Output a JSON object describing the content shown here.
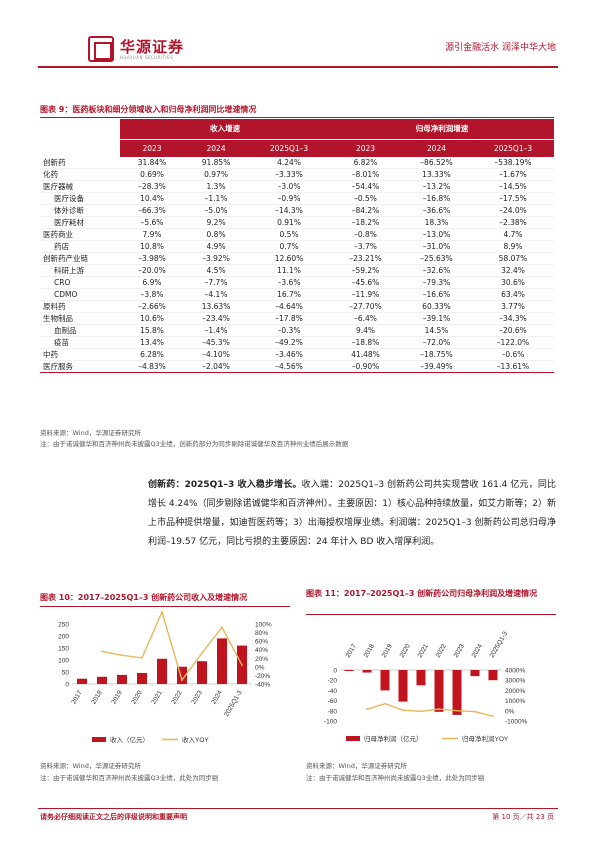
{
  "header": {
    "logo_cn": "华源证券",
    "logo_en": "HUAYUAN SECURITIES",
    "slogan": "源引金融活水  润泽中华大地"
  },
  "table": {
    "title": "图表 9：医药板块和细分领域收入和归母净利润同比增速情况",
    "group1": "收入增速",
    "group2": "归母净利润增速",
    "years": [
      "2023",
      "2024",
      "2025Q1–3",
      "2023",
      "2024",
      "2025Q1–3"
    ],
    "rows": [
      {
        "name": "创新药",
        "indent": false,
        "vals": [
          "31.84%",
          "91.85%",
          "4.24%",
          "6.82%",
          "–86.52%",
          "–538.19%"
        ]
      },
      {
        "name": "化药",
        "indent": false,
        "vals": [
          "0.69%",
          "0.97%",
          "–3.33%",
          "–8.01%",
          "13.33%",
          "–1.67%"
        ]
      },
      {
        "name": "医疗器械",
        "indent": false,
        "vals": [
          "–28.3%",
          "1.3%",
          "–3.0%",
          "–54.4%",
          "–13.2%",
          "–14.5%"
        ]
      },
      {
        "name": "医疗设备",
        "indent": true,
        "vals": [
          "10.4%",
          "–1.1%",
          "–0.9%",
          "–0.5%",
          "–16.8%",
          "–17.5%"
        ]
      },
      {
        "name": "体外诊断",
        "indent": true,
        "vals": [
          "–66.3%",
          "–5.0%",
          "–14.3%",
          "–84.2%",
          "–36.6%",
          "–24.0%"
        ]
      },
      {
        "name": "医疗耗材",
        "indent": true,
        "vals": [
          "–5.6%",
          "9.2%",
          "0.91%",
          "–18.2%",
          "18.3%",
          "–2.38%"
        ]
      },
      {
        "name": "医药商业",
        "indent": false,
        "vals": [
          "7.9%",
          "0.8%",
          "0.5%",
          "–0.8%",
          "–13.0%",
          "4.7%"
        ]
      },
      {
        "name": "药店",
        "indent": true,
        "vals": [
          "10.8%",
          "4.9%",
          "0.7%",
          "–3.7%",
          "–31.0%",
          "8.9%"
        ]
      },
      {
        "name": "创新药产业链",
        "indent": false,
        "vals": [
          "–3.98%",
          "–3.92%",
          "12.60%",
          "–23.21%",
          "–25.63%",
          "58.07%"
        ]
      },
      {
        "name": "科研上游",
        "indent": true,
        "vals": [
          "–20.0%",
          "4.5%",
          "11.1%",
          "–59.2%",
          "–32.6%",
          "32.4%"
        ]
      },
      {
        "name": "CRO",
        "indent": true,
        "vals": [
          "6.9%",
          "–7.7%",
          "–3.6%",
          "–45.6%",
          "–79.3%",
          "30.6%"
        ]
      },
      {
        "name": "CDMO",
        "indent": true,
        "vals": [
          "–3.8%",
          "–4.1%",
          "16.7%",
          "–11.9%",
          "–16.6%",
          "63.4%"
        ]
      },
      {
        "name": "原料药",
        "indent": false,
        "vals": [
          "–2.66%",
          "13.63%",
          "–4.64%",
          "–27.70%",
          "60.33%",
          "3.77%"
        ]
      },
      {
        "name": "生物制品",
        "indent": false,
        "vals": [
          "10.6%",
          "–23.4%",
          "–17.8%",
          "–6.4%",
          "–39.1%",
          "–34.3%"
        ]
      },
      {
        "name": "血制品",
        "indent": true,
        "vals": [
          "15.8%",
          "–1.4%",
          "–0.3%",
          "9.4%",
          "14.5%",
          "–20.6%"
        ]
      },
      {
        "name": "疫苗",
        "indent": true,
        "vals": [
          "13.4%",
          "–45.3%",
          "–49.2%",
          "–18.8%",
          "–72.0%",
          "–122.0%"
        ]
      },
      {
        "name": "中药",
        "indent": false,
        "vals": [
          "6.28%",
          "–4.10%",
          "–3.46%",
          "41.48%",
          "–18.75%",
          "–0.6%"
        ]
      },
      {
        "name": "医疗服务",
        "indent": false,
        "vals": [
          "–4.83%",
          "–2.04%",
          "–4.56%",
          "–0.90%",
          "–39.49%",
          "–13.61%"
        ]
      }
    ],
    "source": "资料来源：Wind，华源证券研究所",
    "note": "注：由于诺诚健华和百济神州尚未披露Q3业绩，创新药部分为同步剔除诺诚健华及百济神州业绩后展示数据"
  },
  "paragraph": {
    "lead": "创新药：2025Q1–3 收入稳步增长。",
    "body": "收入端：2025Q1–3 创新药公司共实现营收 161.4 亿元，同比增长 4.24%（同步剔除诺诚健华和百济神州）。主要原因：1）核心品种持续放量，如艾力斯等；2）新上市品种提供增量，如迪哲医药等；3）出海授权增厚业绩。利润端：2025Q1–3 创新药公司总归母净利润–19.57 亿元，同比亏损的主要原因：24 年计入 BD 收入增厚利润。"
  },
  "chart_data": [
    {
      "type": "bar",
      "title": "图表 10：2017–2025Q1–3 创新药公司收入及增速情况",
      "categories": [
        "2017",
        "2018",
        "2019",
        "2020",
        "2021",
        "2022",
        "2023",
        "2024",
        "2025Q1-3"
      ],
      "series": [
        {
          "name": "收入（亿元）",
          "type": "bar",
          "axis": "left",
          "values": [
            22,
            30,
            38,
            46,
            105,
            72,
            95,
            190,
            160
          ]
        },
        {
          "name": "收入YOY",
          "type": "line",
          "axis": "right",
          "values": [
            null,
            36,
            27,
            21,
            128,
            -31,
            32,
            92,
            4
          ]
        }
      ],
      "ylim_left": [
        0,
        250
      ],
      "yticks_left": [
        "0",
        "50",
        "100",
        "150",
        "200",
        "250"
      ],
      "ylim_right": [
        -40,
        100
      ],
      "yticks_right": [
        "-40%",
        "-20%",
        "0%",
        "20%",
        "40%",
        "60%",
        "80%",
        "100%"
      ],
      "colors": {
        "bar": "#c0141e",
        "line": "#e6b85c"
      },
      "legend": "bottom",
      "source": "资料来源：Wind，华源证券研究所",
      "note": "注：由于诺诚健华和百济神州尚未披露Q3业绩，此处为同步剔"
    },
    {
      "type": "bar",
      "title": "图表 11：2017–2025Q1–3 创新药公司归母净利润及增速情况",
      "categories": [
        "2017",
        "2018",
        "2019",
        "2020",
        "2021",
        "2022",
        "2023",
        "2024",
        "2025Q1-3"
      ],
      "series": [
        {
          "name": "归母净利润（亿元）",
          "type": "bar",
          "axis": "left",
          "values": [
            -2,
            -5,
            -40,
            -62,
            -30,
            -82,
            -88,
            -12,
            -20
          ]
        },
        {
          "name": "归母净利润YOY",
          "type": "line",
          "axis": "right",
          "values": [
            null,
            150,
            700,
            55,
            -52,
            170,
            7,
            -87,
            -538
          ]
        }
      ],
      "ylim_left": [
        -100,
        0
      ],
      "yticks_left": [
        "0",
        "-20",
        "-40",
        "-60",
        "-80",
        "-100"
      ],
      "ylim_right": [
        -1000,
        4000
      ],
      "yticks_right": [
        "-1000%",
        "0%",
        "1000%",
        "2000%",
        "3000%",
        "4000%"
      ],
      "colors": {
        "bar": "#c0141e",
        "line": "#e6b85c"
      },
      "legend": "bottom",
      "source": "资料来源：Wind，华源证券研究所",
      "note": "注：由于诺诚健华和百济神州尚未披露Q3业绩，此处为同步剔"
    }
  ],
  "footer": {
    "disclaimer": "请务必仔细阅读正文之后的评级说明和重要声明",
    "page": "第 10 页／共 23 页"
  }
}
